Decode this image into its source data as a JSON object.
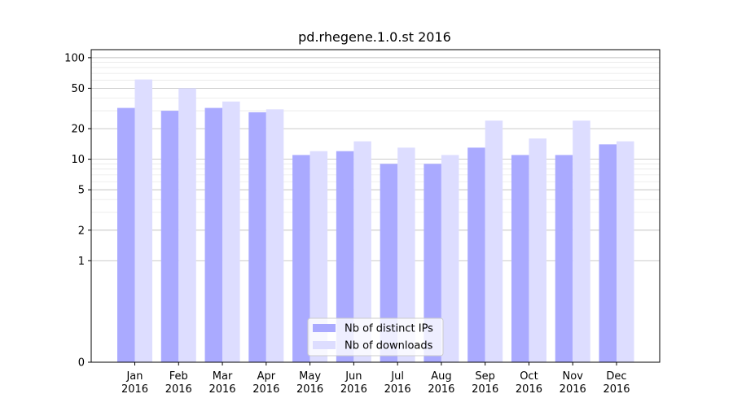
{
  "chart_data": {
    "type": "bar",
    "title": "pd.rhegene.1.0.st 2016",
    "xlabel": "",
    "ylabel": "",
    "y_scale": "symlog",
    "ylim": [
      0,
      120
    ],
    "y_ticks": [
      0,
      1,
      2,
      5,
      10,
      20,
      50,
      100
    ],
    "y_tick_labels": [
      "0",
      "1",
      "2",
      "5",
      "10",
      "20",
      "50",
      "100"
    ],
    "grid": true,
    "legend_position": "bottom-center",
    "categories": [
      "Jan 2016",
      "Feb 2016",
      "Mar 2016",
      "Apr 2016",
      "May 2016",
      "Jun 2016",
      "Jul 2016",
      "Aug 2016",
      "Sep 2016",
      "Oct 2016",
      "Nov 2016",
      "Dec 2016"
    ],
    "category_labels": [
      [
        "Jan",
        "2016"
      ],
      [
        "Feb",
        "2016"
      ],
      [
        "Mar",
        "2016"
      ],
      [
        "Apr",
        "2016"
      ],
      [
        "May",
        "2016"
      ],
      [
        "Jun",
        "2016"
      ],
      [
        "Jul",
        "2016"
      ],
      [
        "Aug",
        "2016"
      ],
      [
        "Sep",
        "2016"
      ],
      [
        "Oct",
        "2016"
      ],
      [
        "Nov",
        "2016"
      ],
      [
        "Dec",
        "2016"
      ]
    ],
    "series": [
      {
        "name": "Nb of distinct IPs",
        "color": "#aaaaff",
        "values": [
          32,
          30,
          32,
          29,
          11,
          12,
          9,
          9,
          13,
          11,
          11,
          14
        ]
      },
      {
        "name": "Nb of downloads",
        "color": "#ddddff",
        "values": [
          61,
          50,
          37,
          31,
          12,
          15,
          13,
          11,
          24,
          16,
          24,
          15
        ]
      }
    ]
  }
}
